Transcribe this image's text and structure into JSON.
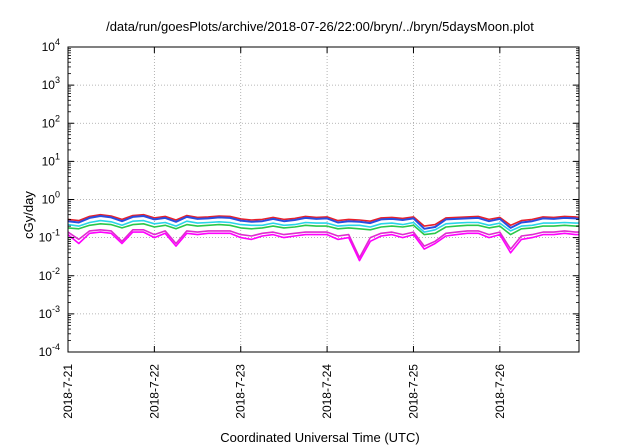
{
  "chart_data": {
    "type": "line",
    "title": "/data/run/goesPlots/archive/2018-07-26/22:00/bryn/../bryn/5daysMoon.plot",
    "xlabel": "Coordinated Universal Time (UTC)",
    "ylabel": "cGy/day",
    "yscale": "log",
    "ylim": [
      0.0001,
      10000
    ],
    "xlim": [
      "2018-07-21T00:00",
      "2018-07-26T22:00"
    ],
    "grid": true,
    "legend": "none",
    "x_ticks": [
      "2018-7-21",
      "2018-7-22",
      "2018-7-23",
      "2018-7-24",
      "2018-7-25",
      "2018-7-26"
    ],
    "y_ticks": [
      {
        "base": "10",
        "exp": "-4",
        "value": 0.0001
      },
      {
        "base": "10",
        "exp": "-3",
        "value": 0.001
      },
      {
        "base": "10",
        "exp": "-2",
        "value": 0.01
      },
      {
        "base": "10",
        "exp": "-1",
        "value": 0.1
      },
      {
        "base": "10",
        "exp": "0",
        "value": 1
      },
      {
        "base": "10",
        "exp": "1",
        "value": 10
      },
      {
        "base": "10",
        "exp": "2",
        "value": 100
      },
      {
        "base": "10",
        "exp": "3",
        "value": 1000
      },
      {
        "base": "10",
        "exp": "4",
        "value": 10000
      }
    ],
    "x": [
      "2018-07-21T00:00",
      "2018-07-21T03:00",
      "2018-07-21T06:00",
      "2018-07-21T09:00",
      "2018-07-21T12:00",
      "2018-07-21T15:00",
      "2018-07-21T18:00",
      "2018-07-21T21:00",
      "2018-07-22T00:00",
      "2018-07-22T03:00",
      "2018-07-22T06:00",
      "2018-07-22T09:00",
      "2018-07-22T12:00",
      "2018-07-22T15:00",
      "2018-07-22T18:00",
      "2018-07-22T21:00",
      "2018-07-23T00:00",
      "2018-07-23T03:00",
      "2018-07-23T06:00",
      "2018-07-23T09:00",
      "2018-07-23T12:00",
      "2018-07-23T15:00",
      "2018-07-23T18:00",
      "2018-07-23T21:00",
      "2018-07-24T00:00",
      "2018-07-24T03:00",
      "2018-07-24T06:00",
      "2018-07-24T09:00",
      "2018-07-24T12:00",
      "2018-07-24T15:00",
      "2018-07-24T18:00",
      "2018-07-24T21:00",
      "2018-07-25T00:00",
      "2018-07-25T03:00",
      "2018-07-25T06:00",
      "2018-07-25T09:00",
      "2018-07-25T12:00",
      "2018-07-25T15:00",
      "2018-07-25T18:00",
      "2018-07-25T21:00",
      "2018-07-26T00:00",
      "2018-07-26T03:00",
      "2018-07-26T06:00",
      "2018-07-26T09:00",
      "2018-07-26T12:00",
      "2018-07-26T15:00",
      "2018-07-26T18:00",
      "2018-07-26T21:00",
      "2018-07-26T22:00"
    ],
    "series": [
      {
        "color": "#e8202a",
        "values": [
          0.3,
          0.28,
          0.36,
          0.4,
          0.37,
          0.3,
          0.38,
          0.4,
          0.33,
          0.36,
          0.29,
          0.38,
          0.34,
          0.35,
          0.37,
          0.36,
          0.31,
          0.29,
          0.3,
          0.34,
          0.3,
          0.32,
          0.36,
          0.34,
          0.35,
          0.28,
          0.3,
          0.29,
          0.27,
          0.33,
          0.34,
          0.32,
          0.35,
          0.2,
          0.22,
          0.33,
          0.34,
          0.35,
          0.36,
          0.3,
          0.34,
          0.21,
          0.28,
          0.3,
          0.35,
          0.34,
          0.36,
          0.35,
          0.34
        ]
      },
      {
        "color": "#2a4de0",
        "values": [
          0.27,
          0.25,
          0.33,
          0.37,
          0.34,
          0.27,
          0.35,
          0.37,
          0.3,
          0.33,
          0.26,
          0.35,
          0.31,
          0.32,
          0.34,
          0.33,
          0.28,
          0.26,
          0.27,
          0.31,
          0.27,
          0.29,
          0.33,
          0.31,
          0.32,
          0.25,
          0.27,
          0.26,
          0.24,
          0.3,
          0.31,
          0.29,
          0.32,
          0.17,
          0.19,
          0.3,
          0.31,
          0.32,
          0.33,
          0.27,
          0.31,
          0.18,
          0.25,
          0.27,
          0.32,
          0.31,
          0.33,
          0.32,
          0.31
        ]
      },
      {
        "color": "#2ad4e8",
        "values": [
          0.22,
          0.2,
          0.25,
          0.28,
          0.26,
          0.21,
          0.27,
          0.28,
          0.23,
          0.25,
          0.2,
          0.27,
          0.24,
          0.25,
          0.26,
          0.25,
          0.22,
          0.21,
          0.21,
          0.24,
          0.21,
          0.22,
          0.25,
          0.24,
          0.24,
          0.2,
          0.21,
          0.21,
          0.19,
          0.23,
          0.24,
          0.22,
          0.25,
          0.14,
          0.16,
          0.23,
          0.24,
          0.25,
          0.25,
          0.21,
          0.24,
          0.15,
          0.2,
          0.21,
          0.24,
          0.24,
          0.25,
          0.24,
          0.24
        ]
      },
      {
        "color": "#2ac84a",
        "values": [
          0.18,
          0.17,
          0.21,
          0.23,
          0.22,
          0.18,
          0.22,
          0.23,
          0.19,
          0.21,
          0.17,
          0.22,
          0.2,
          0.21,
          0.22,
          0.21,
          0.18,
          0.17,
          0.18,
          0.2,
          0.18,
          0.19,
          0.21,
          0.2,
          0.2,
          0.17,
          0.18,
          0.17,
          0.16,
          0.19,
          0.2,
          0.19,
          0.21,
          0.12,
          0.13,
          0.19,
          0.2,
          0.21,
          0.21,
          0.18,
          0.2,
          0.12,
          0.17,
          0.18,
          0.2,
          0.2,
          0.21,
          0.2,
          0.2
        ]
      },
      {
        "color": "#e02ad0",
        "values": [
          0.14,
          0.09,
          0.15,
          0.16,
          0.15,
          0.08,
          0.16,
          0.16,
          0.12,
          0.15,
          0.07,
          0.15,
          0.14,
          0.15,
          0.15,
          0.15,
          0.12,
          0.11,
          0.13,
          0.14,
          0.12,
          0.13,
          0.14,
          0.14,
          0.14,
          0.11,
          0.12,
          0.03,
          0.1,
          0.13,
          0.14,
          0.12,
          0.14,
          0.06,
          0.08,
          0.13,
          0.14,
          0.15,
          0.15,
          0.12,
          0.14,
          0.05,
          0.11,
          0.12,
          0.14,
          0.14,
          0.15,
          0.14,
          0.14
        ]
      },
      {
        "color": "#ff00ff",
        "values": [
          0.12,
          0.07,
          0.13,
          0.14,
          0.13,
          0.07,
          0.14,
          0.14,
          0.1,
          0.13,
          0.06,
          0.13,
          0.12,
          0.13,
          0.13,
          0.13,
          0.1,
          0.09,
          0.11,
          0.12,
          0.1,
          0.11,
          0.12,
          0.12,
          0.12,
          0.09,
          0.1,
          0.025,
          0.08,
          0.11,
          0.12,
          0.1,
          0.12,
          0.05,
          0.07,
          0.11,
          0.12,
          0.13,
          0.13,
          0.1,
          0.12,
          0.04,
          0.09,
          0.1,
          0.12,
          0.12,
          0.13,
          0.12,
          0.12
        ]
      }
    ]
  }
}
